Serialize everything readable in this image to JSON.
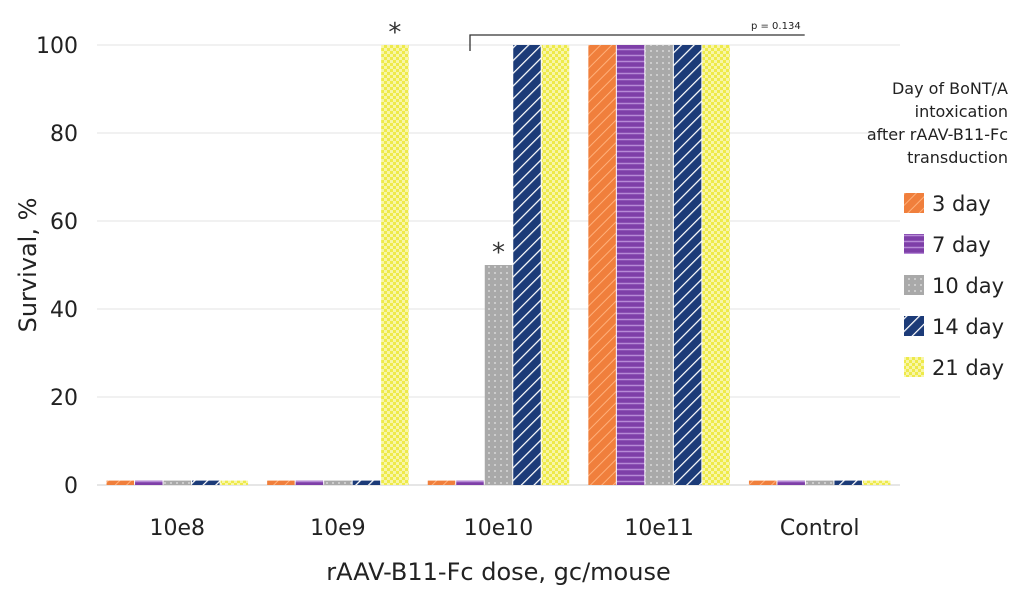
{
  "chart_data": {
    "type": "bar",
    "title": "",
    "xlabel": "rAAV-B11-Fc dose, gc/mouse",
    "ylabel": "Survival, %",
    "ylim": [
      0,
      100
    ],
    "yticks": [
      0,
      20,
      40,
      60,
      80,
      100
    ],
    "categories": [
      "10e8",
      "10e9",
      "10e10",
      "10e11",
      "Control"
    ],
    "series": [
      {
        "name": "3 day",
        "color": "#f07f3c",
        "values": [
          1,
          1,
          1,
          100,
          1
        ]
      },
      {
        "name": "7 day",
        "color": "#7e3fa8",
        "values": [
          1,
          1,
          1,
          100,
          1
        ]
      },
      {
        "name": "10 day",
        "color": "#a9a9a9",
        "values": [
          1,
          1,
          50,
          100,
          1
        ]
      },
      {
        "name": "14 day",
        "color": "#1c3b78",
        "values": [
          1,
          1,
          100,
          100,
          1
        ]
      },
      {
        "name": "21 day",
        "color": "#eeea4a",
        "values": [
          1,
          100,
          100,
          100,
          1
        ]
      }
    ],
    "legend_title": "Day of BoNT/A intoxication after rAAV-B11-Fc transduction",
    "legend_title_lines": [
      "Day of BoNT/A",
      "intoxication",
      "after rAAV-B11-Fc",
      "transduction"
    ],
    "legend_position": "right",
    "grid": true,
    "annotations": [
      {
        "text": "*",
        "category": "10e9",
        "series": "21 day"
      },
      {
        "text": "*",
        "category": "10e10",
        "series": "10 day"
      },
      {
        "text": "p = 0.134",
        "from_category": "10e10",
        "to_category": "Control"
      }
    ]
  }
}
